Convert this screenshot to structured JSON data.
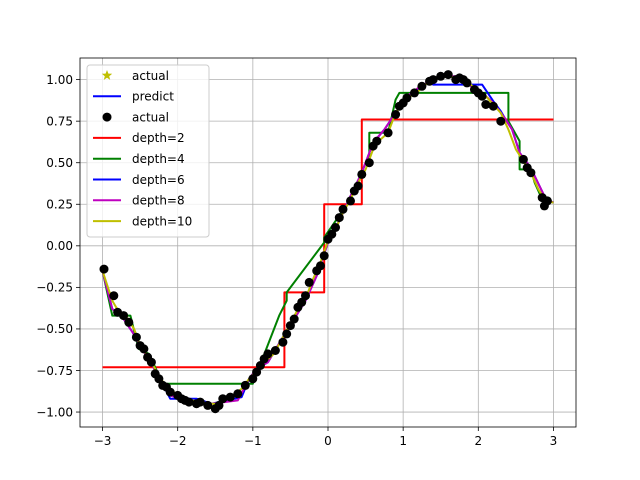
{
  "chart_data": {
    "type": "line",
    "title": "",
    "xlabel": "",
    "ylabel": "",
    "xlim": [
      -3.3,
      3.3
    ],
    "ylim": [
      -1.09,
      1.13
    ],
    "grid": true,
    "legend_position": "top-left",
    "xticks": [
      {
        "value": -3,
        "label": "−3"
      },
      {
        "value": -2,
        "label": "−2"
      },
      {
        "value": -1,
        "label": "−1"
      },
      {
        "value": 0,
        "label": "0"
      },
      {
        "value": 1,
        "label": "1"
      },
      {
        "value": 2,
        "label": "2"
      },
      {
        "value": 3,
        "label": "3"
      }
    ],
    "yticks": [
      {
        "value": 1.0,
        "label": "1.00"
      },
      {
        "value": 0.75,
        "label": "0.75"
      },
      {
        "value": 0.5,
        "label": "0.50"
      },
      {
        "value": 0.25,
        "label": "0.25"
      },
      {
        "value": 0.0,
        "label": "0.00"
      },
      {
        "value": -0.25,
        "label": "−0.25"
      },
      {
        "value": -0.5,
        "label": "−0.50"
      },
      {
        "value": -0.75,
        "label": "−0.75"
      },
      {
        "value": -1.0,
        "label": "−1.00"
      }
    ],
    "legend": [
      {
        "label": "actual",
        "marker": "star",
        "color": "#bfbf00"
      },
      {
        "label": "predict",
        "marker": "line",
        "color": "#0000ff"
      },
      {
        "label": "actual",
        "marker": "circle",
        "color": "#000000"
      },
      {
        "label": "depth=2",
        "marker": "line",
        "color": "#ff0000"
      },
      {
        "label": "depth=4",
        "marker": "line",
        "color": "#008000"
      },
      {
        "label": "depth=6",
        "marker": "line",
        "color": "#0000ff"
      },
      {
        "label": "depth=8",
        "marker": "line",
        "color": "#bf00bf"
      },
      {
        "label": "depth=10",
        "marker": "line",
        "color": "#bfbf00"
      }
    ],
    "scatter": {
      "name": "actual",
      "color": "#000000",
      "x": [
        -2.98,
        -2.85,
        -2.8,
        -2.72,
        -2.65,
        -2.55,
        -2.5,
        -2.45,
        -2.4,
        -2.35,
        -2.3,
        -2.25,
        -2.2,
        -2.15,
        -2.1,
        -2.0,
        -1.95,
        -1.9,
        -1.85,
        -1.75,
        -1.7,
        -1.6,
        -1.5,
        -1.45,
        -1.4,
        -1.3,
        -1.2,
        -1.1,
        -1.0,
        -0.95,
        -0.9,
        -0.85,
        -0.8,
        -0.7,
        -0.6,
        -0.55,
        -0.5,
        -0.45,
        -0.4,
        -0.35,
        -0.3,
        -0.25,
        -0.15,
        -0.1,
        -0.05,
        0.0,
        0.05,
        0.1,
        0.15,
        0.2,
        0.3,
        0.35,
        0.4,
        0.45,
        0.55,
        0.6,
        0.65,
        0.8,
        0.9,
        0.95,
        1.0,
        1.05,
        1.15,
        1.25,
        1.35,
        1.4,
        1.5,
        1.6,
        1.7,
        1.75,
        1.8,
        1.85,
        1.95,
        2.0,
        2.05,
        2.1,
        2.2,
        2.3,
        2.6,
        2.65,
        2.7,
        2.85,
        2.88,
        2.92
      ],
      "y": [
        -0.14,
        -0.3,
        -0.4,
        -0.42,
        -0.46,
        -0.55,
        -0.6,
        -0.62,
        -0.67,
        -0.7,
        -0.77,
        -0.8,
        -0.84,
        -0.85,
        -0.88,
        -0.9,
        -0.92,
        -0.93,
        -0.94,
        -0.95,
        -0.94,
        -0.96,
        -0.98,
        -0.96,
        -0.92,
        -0.91,
        -0.89,
        -0.84,
        -0.8,
        -0.76,
        -0.72,
        -0.68,
        -0.65,
        -0.63,
        -0.58,
        -0.53,
        -0.48,
        -0.44,
        -0.37,
        -0.34,
        -0.3,
        -0.22,
        -0.15,
        -0.12,
        -0.06,
        0.04,
        0.07,
        0.11,
        0.17,
        0.22,
        0.27,
        0.33,
        0.36,
        0.43,
        0.5,
        0.6,
        0.63,
        0.68,
        0.79,
        0.84,
        0.86,
        0.89,
        0.92,
        0.96,
        0.99,
        1.0,
        1.02,
        1.03,
        1.0,
        1.01,
        1.0,
        0.98,
        0.94,
        0.92,
        0.9,
        0.85,
        0.84,
        0.75,
        0.52,
        0.47,
        0.44,
        0.29,
        0.24,
        0.27
      ]
    },
    "series": [
      {
        "name": "depth=2",
        "color": "#ff0000",
        "x": [
          -3.0,
          -0.58,
          -0.58,
          -0.05,
          -0.05,
          0.45,
          0.45,
          3.0
        ],
        "y": [
          -0.73,
          -0.73,
          -0.28,
          -0.28,
          0.25,
          0.25,
          0.76,
          0.76
        ]
      },
      {
        "name": "depth=4",
        "color": "#008000",
        "x": [
          -3.0,
          -2.87,
          -2.87,
          -2.63,
          -2.63,
          -2.52,
          -2.38,
          -2.2,
          -2.2,
          -1.0,
          -0.65,
          -0.55,
          -0.55,
          -0.05,
          -0.05,
          0.3,
          0.5,
          0.55,
          0.55,
          0.8,
          0.9,
          0.95,
          0.95,
          1.8,
          2.4,
          2.4,
          2.55,
          2.55,
          2.7,
          2.75,
          2.85,
          3.0
        ],
        "y": [
          -0.15,
          -0.42,
          -0.42,
          -0.42,
          -0.42,
          -0.62,
          -0.65,
          -0.83,
          -0.83,
          -0.83,
          -0.42,
          -0.33,
          -0.28,
          0.02,
          0.05,
          0.28,
          0.5,
          0.52,
          0.68,
          0.68,
          0.88,
          0.92,
          0.92,
          0.92,
          0.92,
          0.75,
          0.63,
          0.46,
          0.46,
          0.38,
          0.28,
          0.26
        ]
      },
      {
        "name": "depth=6",
        "color": "#0000ff",
        "x": [
          -3.0,
          -2.87,
          -2.75,
          -2.6,
          -2.48,
          -2.38,
          -2.3,
          -2.2,
          -2.1,
          -1.75,
          -1.55,
          -1.15,
          -1.05,
          -0.95,
          -0.8,
          -0.6,
          -0.45,
          -0.3,
          -0.15,
          0.0,
          0.15,
          0.3,
          0.45,
          0.6,
          0.75,
          0.9,
          1.05,
          1.15,
          1.25,
          1.35,
          1.4,
          2.05,
          2.2,
          2.3,
          2.35,
          2.45,
          2.55,
          2.65,
          2.75,
          2.9,
          3.0
        ],
        "y": [
          -0.15,
          -0.38,
          -0.42,
          -0.52,
          -0.62,
          -0.68,
          -0.75,
          -0.83,
          -0.92,
          -0.92,
          -0.95,
          -0.91,
          -0.8,
          -0.74,
          -0.7,
          -0.55,
          -0.44,
          -0.33,
          -0.18,
          0.02,
          0.15,
          0.3,
          0.44,
          0.62,
          0.7,
          0.8,
          0.9,
          0.92,
          0.96,
          0.98,
          0.97,
          0.97,
          0.87,
          0.81,
          0.77,
          0.7,
          0.56,
          0.5,
          0.42,
          0.28,
          0.26
        ]
      },
      {
        "name": "depth=8",
        "color": "#bf00bf",
        "x": [
          -3.0,
          -2.87,
          -2.75,
          -2.6,
          -2.48,
          -2.38,
          -2.3,
          -2.2,
          -2.1,
          -1.9,
          -1.55,
          -1.2,
          -1.05,
          -0.95,
          -0.8,
          -0.6,
          -0.45,
          -0.3,
          -0.15,
          0.0,
          0.15,
          0.3,
          0.45,
          0.6,
          0.75,
          0.9,
          1.05,
          1.2,
          1.35,
          1.5,
          1.8,
          1.9,
          2.05,
          2.2,
          2.35,
          2.45,
          2.55,
          2.65,
          2.75,
          2.9,
          3.0
        ],
        "y": [
          -0.15,
          -0.38,
          -0.42,
          -0.52,
          -0.62,
          -0.68,
          -0.75,
          -0.83,
          -0.9,
          -0.93,
          -0.95,
          -0.93,
          -0.8,
          -0.74,
          -0.7,
          -0.55,
          -0.44,
          -0.33,
          -0.18,
          0.02,
          0.15,
          0.3,
          0.44,
          0.62,
          0.7,
          0.8,
          0.9,
          0.95,
          0.99,
          1.02,
          1.02,
          0.96,
          0.92,
          0.86,
          0.77,
          0.7,
          0.56,
          0.5,
          0.42,
          0.28,
          0.26
        ]
      },
      {
        "name": "depth=10",
        "color": "#bfbf00",
        "x": [
          -3.0,
          -2.87,
          -2.78,
          -2.68,
          -2.58,
          -2.5,
          -2.42,
          -2.35,
          -2.25,
          -2.15,
          -2.05,
          -1.95,
          -1.8,
          -1.7,
          -1.55,
          -1.45,
          -1.3,
          -1.15,
          -1.05,
          -0.95,
          -0.85,
          -0.72,
          -0.6,
          -0.5,
          -0.4,
          -0.3,
          -0.2,
          -0.1,
          0.0,
          0.1,
          0.2,
          0.3,
          0.4,
          0.5,
          0.6,
          0.7,
          0.8,
          0.9,
          1.0,
          1.1,
          1.2,
          1.3,
          1.4,
          1.5,
          1.6,
          1.7,
          1.8,
          1.9,
          2.0,
          2.1,
          2.2,
          2.3,
          2.4,
          2.5,
          2.6,
          2.7,
          2.8,
          2.9,
          3.0
        ],
        "y": [
          -0.15,
          -0.33,
          -0.4,
          -0.43,
          -0.5,
          -0.6,
          -0.65,
          -0.7,
          -0.78,
          -0.85,
          -0.88,
          -0.92,
          -0.93,
          -0.94,
          -0.95,
          -0.95,
          -0.91,
          -0.86,
          -0.8,
          -0.75,
          -0.7,
          -0.65,
          -0.55,
          -0.47,
          -0.38,
          -0.32,
          -0.2,
          -0.1,
          0.03,
          0.1,
          0.2,
          0.28,
          0.38,
          0.46,
          0.58,
          0.64,
          0.68,
          0.8,
          0.86,
          0.9,
          0.93,
          0.97,
          1.0,
          1.01,
          1.02,
          1.01,
          1.0,
          0.97,
          0.93,
          0.9,
          0.85,
          0.8,
          0.7,
          0.58,
          0.51,
          0.44,
          0.34,
          0.27,
          0.26
        ]
      }
    ]
  }
}
